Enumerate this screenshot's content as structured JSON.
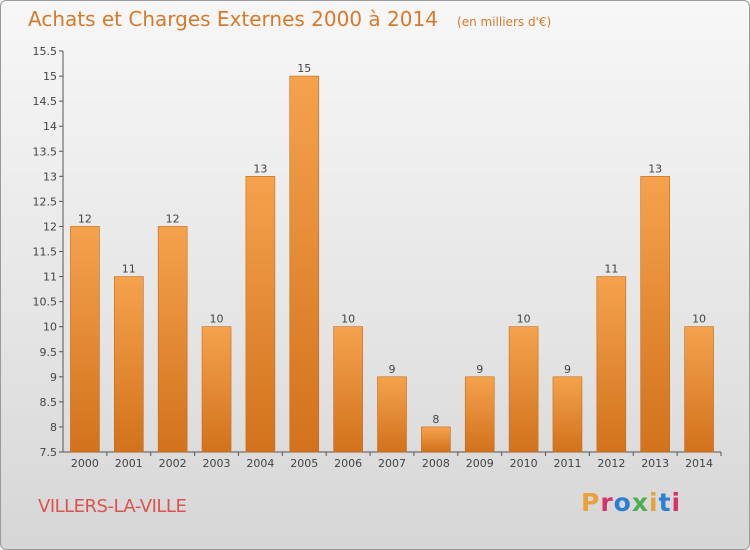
{
  "header": {
    "title": "Achats et Charges Externes 2000 à 2014",
    "subtitle": "(en milliers d'€)"
  },
  "footer": {
    "commune": "VILLERS-LA-VILLE",
    "brand": "Proxiti",
    "brand_colors": [
      "#e8a23a",
      "#d6336c",
      "#2b7fd4",
      "#4caf50",
      "#e8a23a",
      "#2b7fd4",
      "#d6336c"
    ]
  },
  "colors": {
    "bar_top": "#f5a24d",
    "bar_bottom": "#d2721c",
    "title": "#d9792a",
    "commune": "#d9534f"
  },
  "chart_data": {
    "type": "bar",
    "categories": [
      "2000",
      "2001",
      "2002",
      "2003",
      "2004",
      "2005",
      "2006",
      "2007",
      "2008",
      "2009",
      "2010",
      "2011",
      "2012",
      "2013",
      "2014"
    ],
    "values": [
      12,
      11,
      12,
      10,
      13,
      15,
      10,
      9,
      8,
      9,
      10,
      9,
      11,
      13,
      10
    ],
    "data_labels": [
      "12",
      "11",
      "12",
      "10",
      "13",
      "15",
      "10",
      "9",
      "8",
      "9",
      "10",
      "9",
      "11",
      "13",
      "10"
    ],
    "title": "Achats et Charges Externes 2000 à 2014",
    "subtitle": "(en milliers d'€)",
    "xlabel": "",
    "ylabel": "",
    "ylim": [
      7.5,
      15.5
    ],
    "yticks": [
      7.5,
      8,
      8.5,
      9,
      9.5,
      10,
      10.5,
      11,
      11.5,
      12,
      12.5,
      13,
      13.5,
      14,
      14.5,
      15,
      15.5
    ],
    "ytick_labels": [
      "7.5",
      "8",
      "8.5",
      "9",
      "9.5",
      "10",
      "10.5",
      "11",
      "11.5",
      "12",
      "12.5",
      "13",
      "13.5",
      "14",
      "14.5",
      "15",
      "15.5"
    ],
    "grid": false,
    "legend": "none"
  }
}
